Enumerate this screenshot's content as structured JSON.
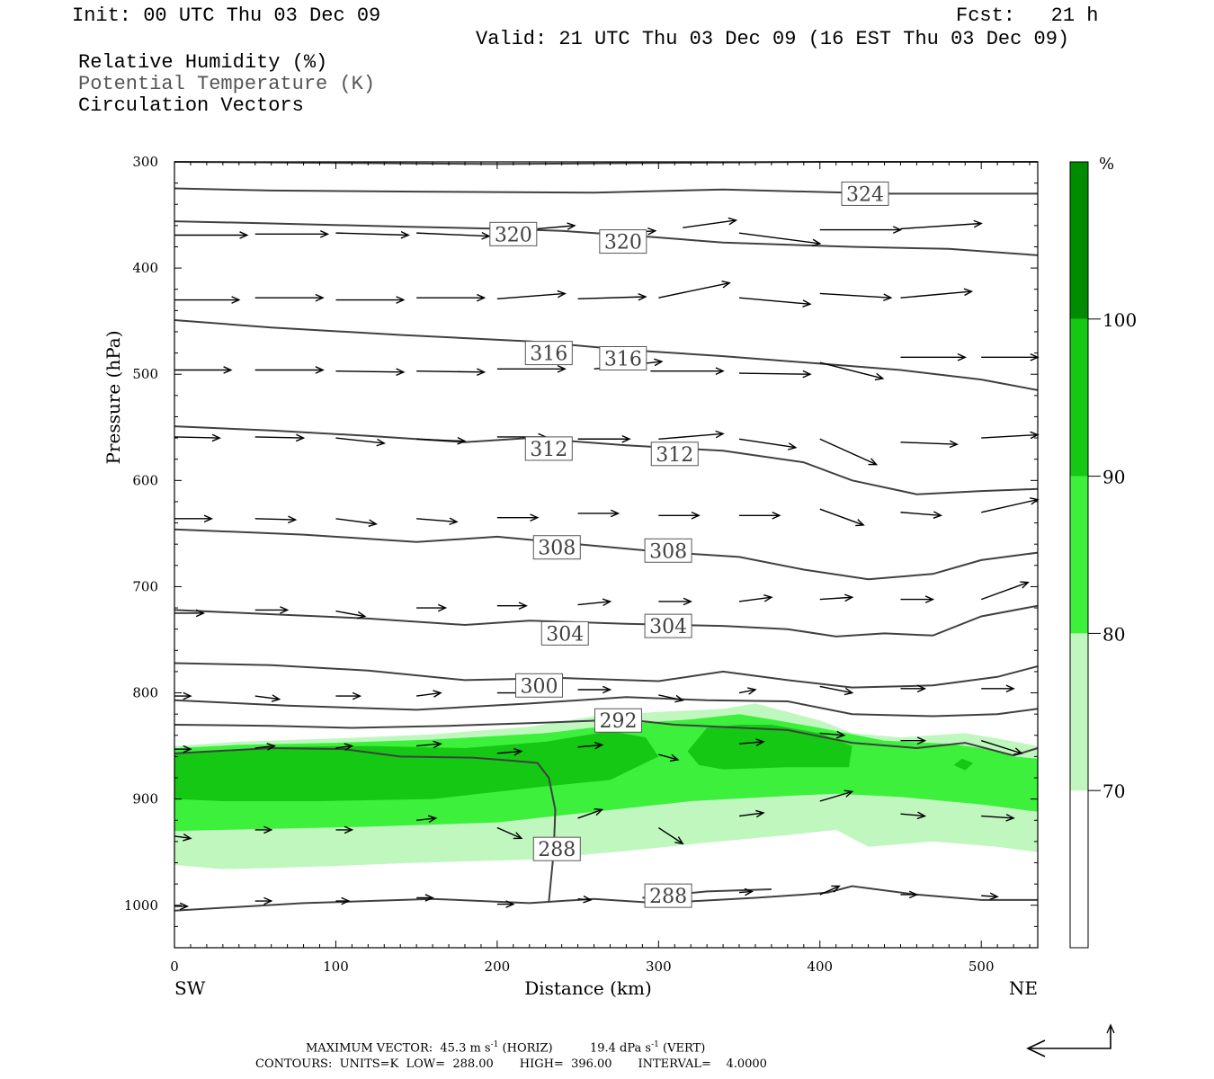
{
  "header": {
    "init": "Init: 00 UTC Thu 03 Dec 09",
    "fcst": "Fcst:   21 h",
    "valid": "Valid: 21 UTC Thu 03 Dec 09 (16 EST Thu 03 Dec 09)",
    "fields": [
      "Relative Humidity (%)",
      "Potential Temperature (K)",
      "Circulation Vectors"
    ]
  },
  "footer": {
    "max_label": "MAXIMUM VECTOR:",
    "max_horiz_value": "45.3 m s",
    "max_horiz_exp": "-1",
    "max_horiz_unit": "(HORIZ)",
    "max_vert_value": "19.4 dPa s",
    "max_vert_exp": "-1",
    "max_vert_unit": "(VERT)",
    "contours": "CONTOURS:  UNITS=K  LOW=  288.00       HIGH=  396.00       INTERVAL=    4.0000"
  },
  "colors": {
    "rh_70_80": "#bff7bf",
    "rh_80_90": "#3cf03c",
    "rh_90_100": "#14c814",
    "rh_100": "#008c00",
    "contour": "#404040",
    "contour_light": "#555555"
  },
  "chart_data": {
    "type": "heatmap",
    "description_fields": [
      "Relative Humidity (%)",
      "Potential Temperature (K)",
      "Circulation Vectors"
    ],
    "xlabel": "Distance (km)",
    "ylabel": "Pressure (hPa)",
    "x_ticks": [
      "0",
      "100",
      "200",
      "300",
      "400",
      "500"
    ],
    "x_end_labels": {
      "left": "SW",
      "right": "NE"
    },
    "y_ticks": [
      "300",
      "400",
      "500",
      "600",
      "700",
      "800",
      "900",
      "1000"
    ],
    "xlim": [
      0,
      535
    ],
    "ylim": [
      1040,
      300
    ],
    "colorbar": {
      "unit": "%",
      "levels": [
        "70",
        "80",
        "90",
        "100"
      ],
      "colors": [
        "#ffffff",
        "#bff7bf",
        "#3cf03c",
        "#14c814",
        "#008c00"
      ]
    },
    "theta_contour_labels": [
      {
        "value": "324",
        "x": 428,
        "p": 330
      },
      {
        "value": "320",
        "x": 210,
        "p": 368
      },
      {
        "value": "320",
        "x": 278,
        "p": 375
      },
      {
        "value": "316",
        "x": 232,
        "p": 480
      },
      {
        "value": "316",
        "x": 278,
        "p": 485
      },
      {
        "value": "312",
        "x": 232,
        "p": 570
      },
      {
        "value": "312",
        "x": 310,
        "p": 575
      },
      {
        "value": "308",
        "x": 237,
        "p": 663
      },
      {
        "value": "308",
        "x": 306,
        "p": 666
      },
      {
        "value": "304",
        "x": 242,
        "p": 744
      },
      {
        "value": "304",
        "x": 306,
        "p": 737
      },
      {
        "value": "300",
        "x": 226,
        "p": 793
      },
      {
        "value": "292",
        "x": 275,
        "p": 826
      },
      {
        "value": "288",
        "x": 237,
        "p": 947
      },
      {
        "value": "288",
        "x": 306,
        "p": 991
      }
    ]
  }
}
